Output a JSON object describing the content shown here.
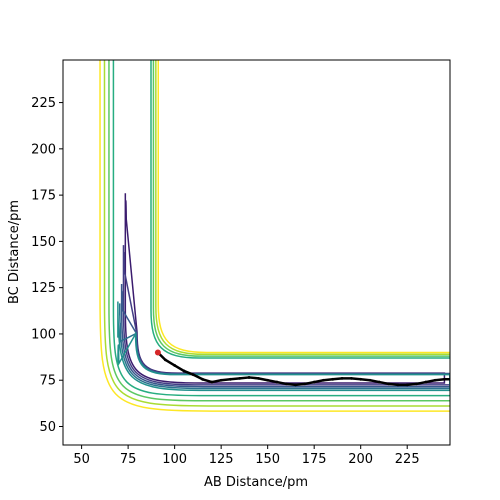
{
  "chart_data": {
    "type": "contour",
    "xlabel": "AB Distance/pm",
    "ylabel": "BC Distance/pm",
    "xlim": [
      40,
      248
    ],
    "ylim": [
      40,
      248
    ],
    "xticks": [
      50,
      75,
      100,
      125,
      150,
      175,
      200,
      225
    ],
    "yticks": [
      50,
      75,
      100,
      125,
      150,
      175,
      200,
      225
    ],
    "colormap": [
      "#440154",
      "#46327e",
      "#365c8d",
      "#277f8e",
      "#1fa187",
      "#4ac16d",
      "#a0da39",
      "#fde725"
    ],
    "contours": [
      {
        "level": 1,
        "color": "#3b1c6e",
        "well_x": 73.5,
        "well_y": 73.5,
        "stem_top_x": 71,
        "stem_top_y": 176,
        "arm_right_y": 71,
        "arm_right_x": 245
      },
      {
        "level": 2,
        "color": "#433e85",
        "well_x": 72.5,
        "well_y": 72.5,
        "stem_top_x": 70,
        "stem_top_y": 148,
        "arm_right_y": 70,
        "arm_right_x": 248
      },
      {
        "level": 3,
        "color": "#38588c",
        "well_x": 71.5,
        "well_y": 71.5,
        "stem_top_x": 69,
        "stem_top_y": 127,
        "arm_right_y": 69,
        "arm_right_x": 248
      },
      {
        "level": 4,
        "color": "#2c728e",
        "well_x": 70.5,
        "well_y": 70.5,
        "stem_top_x": 68,
        "stem_top_y": 110,
        "arm_right_y": 68,
        "arm_right_x": 248
      },
      {
        "level": 5,
        "color": "#21908d",
        "well_x": 69.5,
        "well_y": 69.5,
        "stem_top_x": 67,
        "stem_top_y": 98,
        "arm_right_y": 67,
        "arm_right_x": 248
      },
      {
        "level": 6,
        "color": "#27ad81",
        "well_x": 68.5,
        "well_y": 68.5
      },
      {
        "level": 7,
        "color": "#5cc863",
        "well_x": 67.5,
        "well_y": 67.5
      },
      {
        "level": 8,
        "color": "#aadc32",
        "well_x": 66.5,
        "well_y": 66.5
      },
      {
        "level": 9,
        "color": "#fde725",
        "well_x": 65.5,
        "well_y": 65.5
      }
    ],
    "trajectory": {
      "color": "#000000",
      "points": [
        [
          91,
          90
        ],
        [
          95,
          86
        ],
        [
          100,
          83
        ],
        [
          105,
          80
        ],
        [
          110,
          78
        ],
        [
          115,
          75.5
        ],
        [
          120,
          74
        ],
        [
          125,
          75
        ],
        [
          130,
          75.5
        ],
        [
          135,
          76
        ],
        [
          140,
          76.5
        ],
        [
          145,
          76
        ],
        [
          150,
          75
        ],
        [
          155,
          74
        ],
        [
          160,
          73
        ],
        [
          165,
          72.5
        ],
        [
          170,
          73
        ],
        [
          175,
          74
        ],
        [
          180,
          75
        ],
        [
          185,
          75.5
        ],
        [
          190,
          76
        ],
        [
          195,
          76
        ],
        [
          200,
          75.5
        ],
        [
          205,
          75
        ],
        [
          210,
          74
        ],
        [
          215,
          73
        ],
        [
          220,
          72.5
        ],
        [
          225,
          72.5
        ],
        [
          230,
          73
        ],
        [
          235,
          74
        ],
        [
          240,
          75
        ],
        [
          245,
          75.5
        ],
        [
          248,
          75.5
        ]
      ]
    },
    "start_point": {
      "x": 91,
      "y": 90,
      "color": "#d62728"
    }
  }
}
